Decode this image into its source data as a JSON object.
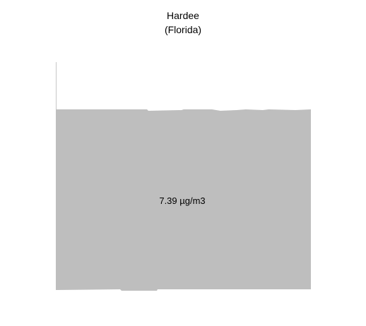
{
  "chart_data": {
    "type": "area",
    "title": "Hardee",
    "subtitle": "(Florida)",
    "xlabel": "",
    "ylabel": "",
    "value_label": "7.39 µg/m3",
    "value": 7.39,
    "unit": "µg/m3",
    "grid": false,
    "legend": "none",
    "colors": {
      "fill": "#bebebe",
      "axis": "#c8c8c8",
      "text": "#000000"
    }
  }
}
